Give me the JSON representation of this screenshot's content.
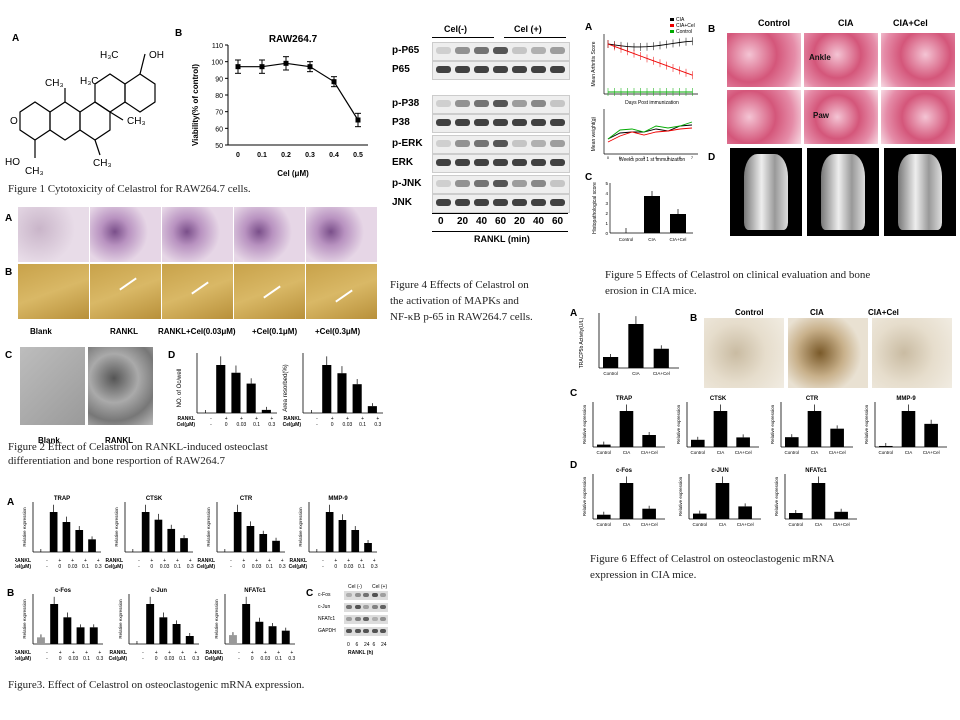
{
  "fig1": {
    "letter_a": "A",
    "letter_b": "B",
    "mol": {
      "h3c_top": "H₃C",
      "cooh": "OH",
      "o": "O",
      "h3c_mid": "H₃C",
      "ch3_right": "CH₃",
      "ch3_left": "CH₃",
      "ch3_bottom": "CH₃",
      "ho": "HO",
      "ch3_base": "CH₃"
    },
    "chart_title": "RAW264.7",
    "ylabel": "Viability(% of control)",
    "xlabel": "Cel (μM)",
    "caption": "Figure 1 Cytotoxicity of Celastrol for RAW264.7 cells."
  },
  "chart_data": {
    "type": "line",
    "title": "RAW264.7",
    "xlabel": "Cel (μM)",
    "ylabel": "Viability(% of control)",
    "categories": [
      "0",
      "0.1",
      "0.2",
      "0.3",
      "0.4",
      "0.5"
    ],
    "values": [
      97,
      97,
      99,
      97,
      88,
      65
    ],
    "errors": [
      4,
      4,
      4,
      3,
      3,
      4
    ],
    "ylim": [
      50,
      110
    ],
    "yticks": [
      50,
      60,
      70,
      80,
      90,
      100,
      110
    ]
  },
  "fig2": {
    "row_a": "A",
    "row_b": "B",
    "row_c": "C",
    "row_d": "D",
    "labels": [
      "Blank",
      "RANKL",
      "RANKL+Cel(0.03μM)",
      "+Cel(0.1μM)",
      "+Cel(0.3μM)"
    ],
    "c_labels": [
      "Blank",
      "RANKL"
    ],
    "d_chart1_ylabel": "NO. of Oc/well",
    "d_chart2_ylabel": "Area resorbed(%)",
    "rankl_row": [
      "RANKL",
      "-",
      "+",
      "+",
      "+",
      "+"
    ],
    "cel_row": [
      "Cel(μM)",
      "-",
      "0",
      "0.03",
      "0.1",
      "0.3"
    ],
    "d_values1": [
      0,
      155,
      130,
      95,
      10
    ],
    "d_values2": [
      0,
      70,
      58,
      42,
      10
    ],
    "caption_line1": "Figure 2 Effect of Celastrol on RANKL-induced osteoclast",
    "caption_line2": "differentiation and bone resportion of RAW264.7"
  },
  "fig3": {
    "row_a": "A",
    "row_b": "B",
    "row_c": "C",
    "panels_a": [
      {
        "title": "TRAP",
        "values": [
          0,
          600,
          450,
          330,
          190
        ]
      },
      {
        "title": "CTSK",
        "values": [
          0,
          52,
          42,
          30,
          18
        ]
      },
      {
        "title": "CTR",
        "values": [
          0,
          1000,
          650,
          450,
          280
        ]
      },
      {
        "title": "MMP-9",
        "values": [
          0,
          200,
          160,
          110,
          45
        ]
      }
    ],
    "panels_b": [
      {
        "title": "c-Fos",
        "values": [
          2,
          12,
          8,
          5,
          5
        ]
      },
      {
        "title": "c-Jun",
        "values": [
          0,
          30,
          20,
          15,
          6
        ]
      },
      {
        "title": "NFATc1",
        "values": [
          4,
          18,
          10,
          8,
          6
        ]
      }
    ],
    "ylabel": "Relative expression",
    "rankl_row": [
      "RANKL",
      "-",
      "+",
      "+",
      "+",
      "+"
    ],
    "cel_row": [
      "Cel(μM)",
      "-",
      "0",
      "0.03",
      "0.1",
      "0.3"
    ],
    "blot_header": [
      "Cel (-)",
      "Cel (+)"
    ],
    "blot_rows": [
      "c-Fos",
      "c-Jun",
      "NFATc1",
      "GAPDH"
    ],
    "blot_times": [
      "0",
      "6",
      "24",
      "6",
      "24"
    ],
    "blot_xlabel": "RANKL (h)",
    "caption": "Figure3. Effect of Celastrol on osteoclastogenic mRNA expression."
  },
  "fig4": {
    "header": [
      "Cel(-)",
      "Cel (+)"
    ],
    "rows": [
      "p-P65",
      "P65",
      "p-P38",
      "P38",
      "p-ERK",
      "ERK",
      "p-JNK",
      "JNK"
    ],
    "times": [
      "0",
      "20",
      "40",
      "60",
      "20",
      "40",
      "60"
    ],
    "xlabel": "RANKL (min)",
    "caption_line1": "Figure 4 Effects of Celastrol on",
    "caption_line2": "the activation of MAPKs and",
    "caption_line3": "NF-κB p-65 in RAW264.7 cells."
  },
  "fig5": {
    "letter_a": "A",
    "letter_b": "B",
    "letter_c": "C",
    "letter_d": "D",
    "legend": [
      "CIA",
      "CIA+Cel",
      "Control"
    ],
    "arthritis_ylabel": "Mean Arthritis Score",
    "arthritis_xlabel": "Days Post immunization",
    "weight_ylabel": "Mean weight(g)",
    "weight_xlabel": "Weeks post 1 st immunization",
    "weight_xticks": [
      "0",
      "1",
      "2",
      "3",
      "4",
      "5",
      "6",
      "7"
    ],
    "histo_ylabel": "Histopathological score",
    "histo_categories": [
      "Control",
      "CIA",
      "CIA+Cel"
    ],
    "histo_values": [
      0,
      3.7,
      1.9
    ],
    "histo_yticks": [
      "0",
      "1",
      "2",
      "3",
      "4",
      "5"
    ],
    "col_headers": [
      "Control",
      "CIA",
      "CIA+Cel"
    ],
    "row_labels": [
      "Ankle",
      "Paw"
    ],
    "caption_line1": "Figure 5 Effects of Celastrol on clinical evaluation and bone",
    "caption_line2": "erosion in CIA mice."
  },
  "fig6": {
    "letter_a": "A",
    "letter_b": "B",
    "letter_c": "C",
    "letter_d": "D",
    "a_ylabel": "TRACP5b Activity(U/L)",
    "categories": [
      "Control",
      "CIA",
      "CIA+Cel"
    ],
    "a_values": [
      2,
      8,
      3.5
    ],
    "col_headers": [
      "Control",
      "CIA",
      "CIA+Cel"
    ],
    "ylabel": "Relative expression",
    "panels_c": [
      {
        "title": "TRAP",
        "values": [
          3,
          45,
          15
        ]
      },
      {
        "title": "CTSK",
        "values": [
          30,
          150,
          40
        ]
      },
      {
        "title": "CTR",
        "values": [
          15,
          55,
          28
        ]
      },
      {
        "title": "MMP-9",
        "values": [
          2,
          70,
          45
        ]
      }
    ],
    "panels_d": [
      {
        "title": "c-Fos",
        "values": [
          5,
          42,
          12
        ]
      },
      {
        "title": "c-JUN",
        "values": [
          6,
          40,
          14
        ]
      },
      {
        "title": "NFATc1",
        "values": [
          10,
          60,
          12
        ]
      }
    ],
    "caption_line1": "Figure 6 Effect of Celastrol on osteoclastogenic mRNA",
    "caption_line2": "expression in CIA mice."
  }
}
